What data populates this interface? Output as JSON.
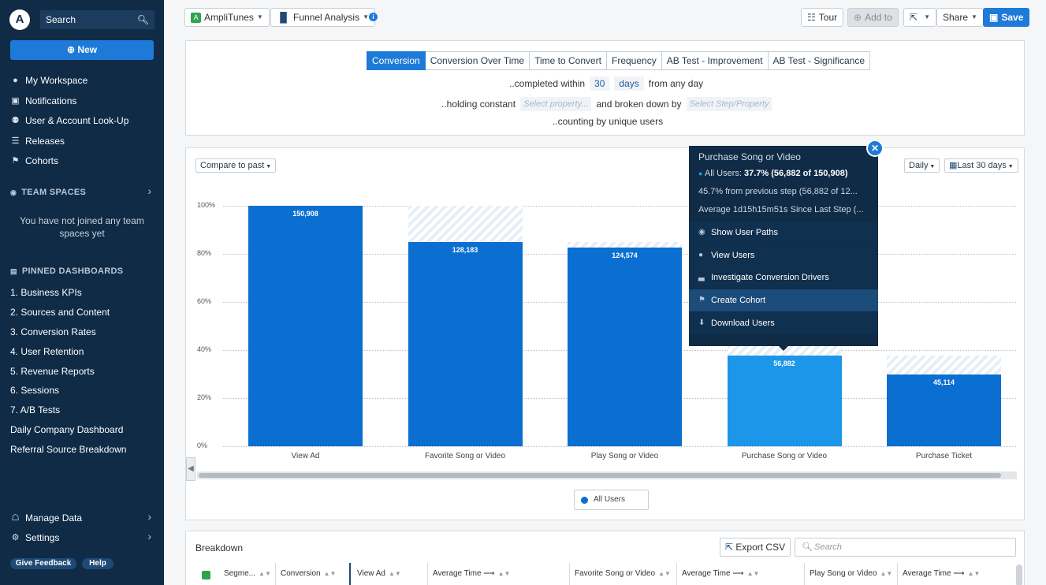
{
  "app": {
    "search_placeholder": "Search",
    "new_label": "New",
    "project": "AmpliTunes",
    "chart_type": "Funnel Analysis"
  },
  "sidebar": {
    "nav": [
      "My Workspace",
      "Notifications",
      "User & Account Look-Up",
      "Releases",
      "Cohorts"
    ],
    "team_spaces": "TEAM SPACES",
    "team_empty": "You have not joined any team spaces yet",
    "pinned_hdr": "PINNED DASHBOARDS",
    "pinned": [
      "1. Business KPIs",
      "2. Sources and Content",
      "3. Conversion Rates",
      "4. User Retention",
      "5. Revenue Reports",
      "6. Sessions",
      "7. A/B Tests",
      "Daily Company Dashboard",
      "Referral Source Breakdown"
    ],
    "manage_data": "Manage Data",
    "settings": "Settings",
    "feedback": "Give Feedback",
    "help": "Help"
  },
  "toolbar": {
    "tour": "Tour",
    "add_to": "Add to",
    "share": "Share",
    "save": "Save"
  },
  "config": {
    "tabs": [
      "Conversion",
      "Conversion Over Time",
      "Time to Convert",
      "Frequency",
      "AB Test - Improvement",
      "AB Test - Significance"
    ],
    "completed_within": "..completed within",
    "days_value": "30",
    "days_unit": "days",
    "from_any_day": "from any day",
    "holding_constant": "..holding constant",
    "select_property": "Select property...",
    "broken_down_by": "and broken down by",
    "select_step": "Select Step/Property",
    "counting": "..counting by unique users"
  },
  "chart_controls": {
    "compare": "Compare to past",
    "interval": "Daily",
    "range": "Last 30 days"
  },
  "chart_data": {
    "type": "bar",
    "categories": [
      "View Ad",
      "Favorite Song or Video",
      "Play Song or Video",
      "Purchase Song or Video",
      "Purchase Ticket"
    ],
    "values": [
      150908,
      128183,
      124574,
      56882,
      45114
    ],
    "percent": [
      100,
      84.9,
      82.5,
      37.7,
      29.9
    ],
    "previous_percent": [
      100,
      100,
      84.9,
      45.7,
      37.7
    ],
    "value_labels": [
      "150,908",
      "128,183",
      "124,574",
      "56,882",
      "45,114"
    ],
    "yticks": [
      "100%",
      "80%",
      "60%",
      "40%",
      "20%",
      "0%"
    ],
    "ylim": [
      0,
      100
    ],
    "legend": "All Users",
    "highlight_index": 3
  },
  "tooltip": {
    "title": "Purchase Song or Video",
    "all_users_prefix": "All Users: ",
    "all_users_value": "37.7% (56,882 of 150,908)",
    "from_prev": "45.7% from previous step (56,882 of 12...",
    "avg_time": "Average 1d15h15m51s Since Last Step (...",
    "menu": [
      "Show User Paths",
      "View Users",
      "Investigate Conversion Drivers",
      "Create Cohort",
      "Download Users"
    ],
    "highlighted_menu_index": 3
  },
  "breakdown": {
    "title": "Breakdown",
    "export": "Export CSV",
    "search_placeholder": "Search",
    "columns": [
      "Segme...",
      "Conversion",
      "View Ad",
      "Average Time ⟶",
      "Favorite Song or Video",
      "Average Time ⟶",
      "Play Song or Video",
      "Average Time ⟶"
    ]
  }
}
